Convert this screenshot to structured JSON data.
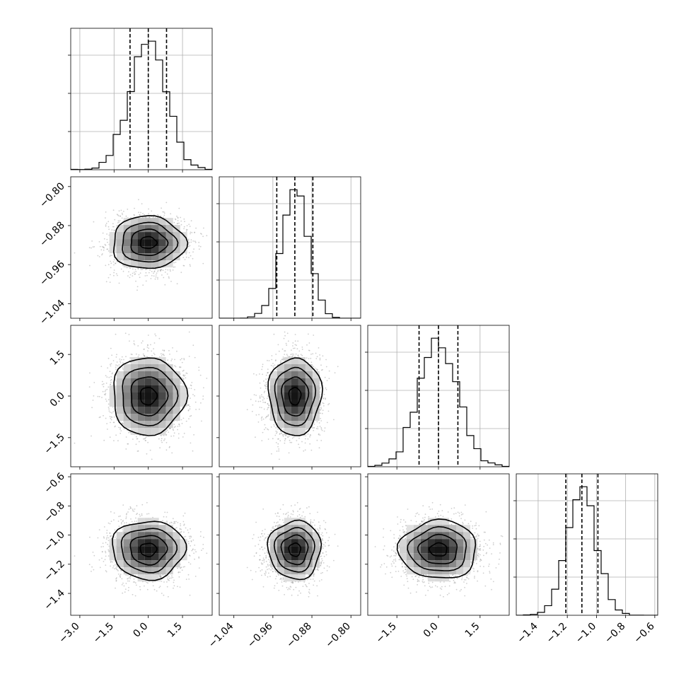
{
  "chart_data": {
    "type": "corner",
    "parameters": [
      {
        "index": 0,
        "range": [
          -3.4,
          2.8
        ],
        "ticks": [
          -3.0,
          -1.5,
          0.0,
          1.5
        ],
        "tick_labels": [
          "−3.0",
          "−1.5",
          "0.0",
          "1.5"
        ],
        "mean": 0.0,
        "sd": 0.8,
        "quantiles": [
          -0.8,
          0.0,
          0.8
        ]
      },
      {
        "index": 1,
        "range": [
          -1.07,
          -0.78
        ],
        "ticks": [
          -1.04,
          -0.96,
          -0.88,
          -0.8
        ],
        "tick_labels": [
          "−1.04",
          "−0.96",
          "−0.88",
          "−0.80"
        ],
        "mean": -0.915,
        "sd": 0.027,
        "quantiles": [
          -0.952,
          -0.915,
          -0.878
        ]
      },
      {
        "index": 2,
        "range": [
          -2.55,
          2.55
        ],
        "ticks": [
          -1.5,
          0.0,
          1.5
        ],
        "tick_labels": [
          "−1.5",
          "0.0",
          "1.5"
        ],
        "mean": 0.0,
        "sd": 0.7,
        "quantiles": [
          -0.7,
          0.0,
          0.7
        ]
      },
      {
        "index": 3,
        "range": [
          -1.55,
          -0.58
        ],
        "ticks": [
          -1.4,
          -1.2,
          -1.0,
          -0.8,
          -0.6
        ],
        "tick_labels": [
          "−1.4",
          "−1.2",
          "−1.0",
          "−0.8",
          "−0.6"
        ],
        "mean": -1.1,
        "sd": 0.1,
        "quantiles": [
          -1.21,
          -1.1,
          -0.99
        ]
      }
    ],
    "histogram_bins": 20,
    "grid": true,
    "quantile_line_style": "dashed",
    "contour_levels": 4,
    "scatter_color": "#a0a0a0",
    "hist_color": "#000000",
    "density_colormap": [
      "#ffffff",
      "#000000"
    ]
  }
}
